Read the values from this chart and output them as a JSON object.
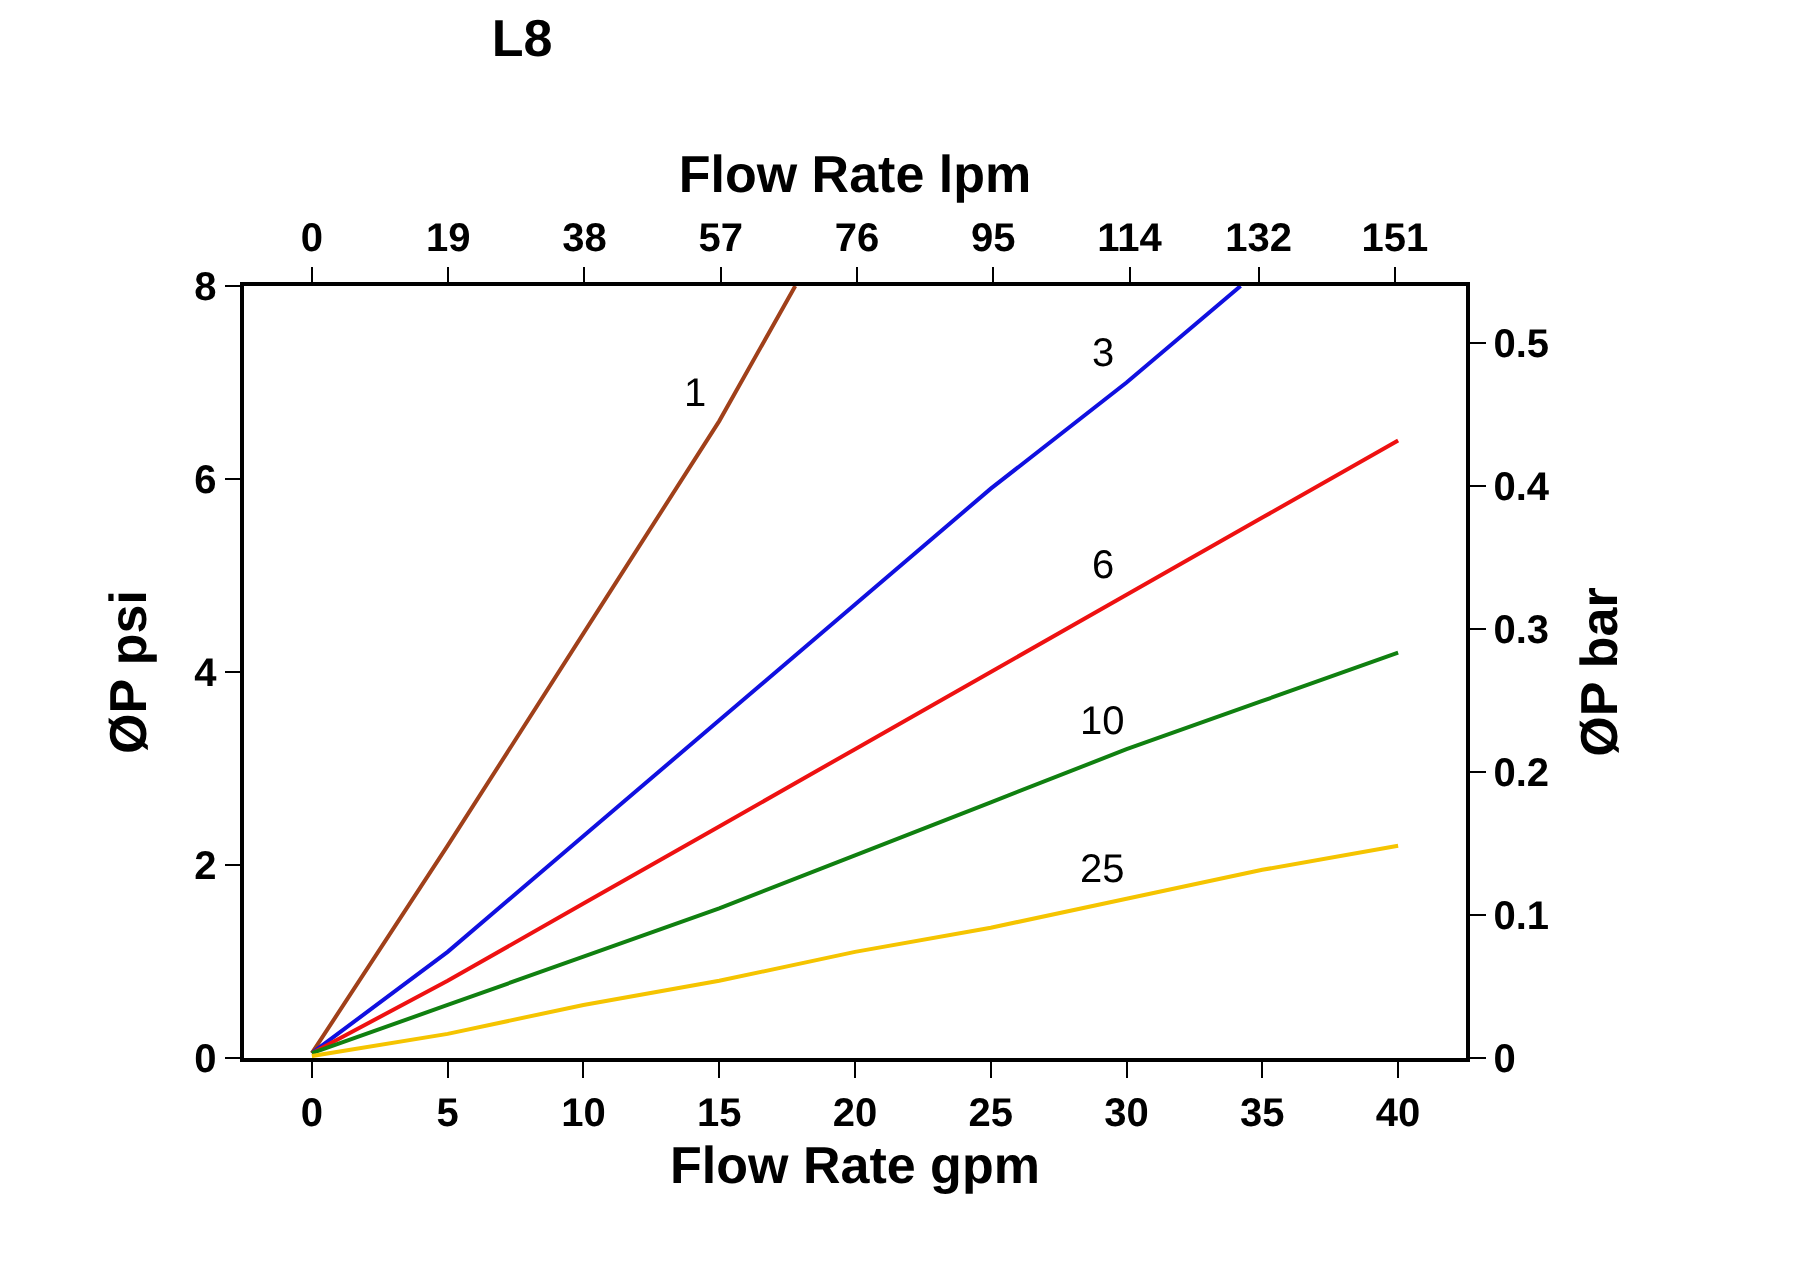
{
  "chart_data": {
    "type": "line",
    "title": "L8",
    "x2label": "Flow Rate lpm",
    "xlabel": "Flow Rate gpm",
    "ylabel": "ØP psi",
    "y2label": "ØP bar",
    "xlim": [
      -2.5,
      42.5
    ],
    "xticks": [
      0,
      5,
      10,
      15,
      20,
      25,
      30,
      35,
      40
    ],
    "x2lim": [
      -9.46,
      160.9
    ],
    "x2ticks": [
      0,
      19,
      38,
      57,
      76,
      95,
      114,
      132,
      151
    ],
    "ylim": [
      0,
      8
    ],
    "yticks": [
      0,
      2,
      4,
      6,
      8
    ],
    "y2lim": [
      0,
      0.54
    ],
    "y2ticks": [
      0,
      0.1,
      0.2,
      0.3,
      0.4,
      0.5
    ],
    "legend": false,
    "marker": "none",
    "line_style": "solid",
    "series": [
      {
        "name": "1",
        "color": "#a0401a",
        "x": [
          0,
          5,
          10,
          15,
          17.8
        ],
        "values": [
          0.05,
          2.2,
          4.4,
          6.6,
          8
        ]
      },
      {
        "name": "3",
        "color": "#1010e0",
        "x": [
          0,
          5,
          10,
          15,
          20,
          25,
          30,
          34.2
        ],
        "values": [
          0.05,
          1.1,
          2.3,
          3.5,
          4.7,
          5.9,
          7.0,
          8
        ]
      },
      {
        "name": "6",
        "color": "#ee1111",
        "x": [
          0,
          5,
          10,
          15,
          20,
          25,
          30,
          35,
          40
        ],
        "values": [
          0.05,
          0.8,
          1.6,
          2.4,
          3.2,
          4.0,
          4.8,
          5.6,
          6.4
        ]
      },
      {
        "name": "10",
        "color": "#108010",
        "x": [
          0,
          5,
          10,
          15,
          20,
          25,
          30,
          35,
          40
        ],
        "values": [
          0.05,
          0.55,
          1.05,
          1.55,
          2.1,
          2.65,
          3.2,
          3.7,
          4.2
        ]
      },
      {
        "name": "25",
        "color": "#f5c400",
        "x": [
          0,
          5,
          10,
          15,
          20,
          25,
          30,
          35,
          40
        ],
        "values": [
          0.02,
          0.25,
          0.55,
          0.8,
          1.1,
          1.35,
          1.65,
          1.95,
          2.2
        ]
      }
    ]
  }
}
